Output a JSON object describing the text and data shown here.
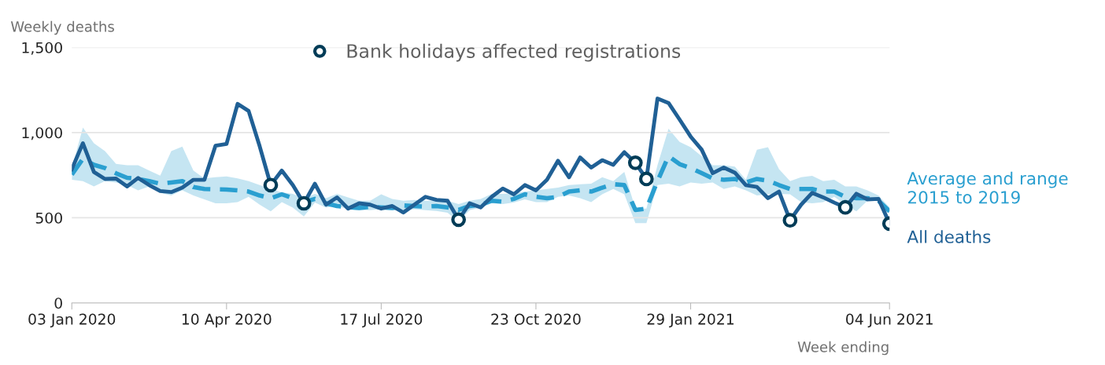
{
  "chart_data": {
    "type": "line",
    "ylabel": "Weekly deaths",
    "xlabel": "Week ending",
    "x": [
      "2020-01-03",
      "2020-01-10",
      "2020-01-17",
      "2020-01-24",
      "2020-01-31",
      "2020-02-07",
      "2020-02-14",
      "2020-02-21",
      "2020-02-28",
      "2020-03-06",
      "2020-03-13",
      "2020-03-20",
      "2020-03-27",
      "2020-04-03",
      "2020-04-10",
      "2020-04-17",
      "2020-04-24",
      "2020-05-01",
      "2020-05-08",
      "2020-05-15",
      "2020-05-22",
      "2020-05-29",
      "2020-06-05",
      "2020-06-12",
      "2020-06-19",
      "2020-06-26",
      "2020-07-03",
      "2020-07-10",
      "2020-07-17",
      "2020-07-24",
      "2020-07-31",
      "2020-08-07",
      "2020-08-14",
      "2020-08-21",
      "2020-08-28",
      "2020-09-04",
      "2020-09-11",
      "2020-09-18",
      "2020-09-25",
      "2020-10-02",
      "2020-10-09",
      "2020-10-16",
      "2020-10-23",
      "2020-10-30",
      "2020-11-06",
      "2020-11-13",
      "2020-11-20",
      "2020-11-27",
      "2020-12-04",
      "2020-12-11",
      "2020-12-18",
      "2020-12-25",
      "2021-01-01",
      "2021-01-08",
      "2021-01-15",
      "2021-01-22",
      "2021-01-29",
      "2021-02-05",
      "2021-02-12",
      "2021-02-19",
      "2021-02-26",
      "2021-03-05",
      "2021-03-12",
      "2021-03-19",
      "2021-03-26",
      "2021-04-02",
      "2021-04-09",
      "2021-04-16",
      "2021-04-23",
      "2021-04-30",
      "2021-05-07",
      "2021-05-14",
      "2021-05-21",
      "2021-05-28",
      "2021-06-04"
    ],
    "series": [
      {
        "name": "Average and range 2015 to 2019",
        "color": "#2a9fd0",
        "line_style": "dashed",
        "values": [
          754,
          846,
          811,
          792,
          761,
          735,
          728,
          715,
          700,
          707,
          715,
          681,
          669,
          667,
          666,
          661,
          654,
          631,
          615,
          638,
          615,
          592,
          611,
          585,
          569,
          562,
          558,
          564,
          561,
          557,
          572,
          569,
          566,
          569,
          561,
          546,
          569,
          577,
          600,
          595,
          611,
          638,
          623,
          615,
          623,
          654,
          661,
          654,
          677,
          697,
          692,
          546,
          554,
          715,
          862,
          815,
          792,
          762,
          731,
          723,
          728,
          707,
          728,
          718,
          692,
          669,
          669,
          669,
          654,
          654,
          623,
          615,
          615,
          600,
          538
        ],
        "lower": [
          723,
          715,
          684,
          715,
          707,
          692,
          661,
          684,
          646,
          631,
          661,
          631,
          608,
          585,
          585,
          592,
          623,
          577,
          538,
          592,
          560,
          508,
          590,
          560,
          570,
          550,
          545,
          545,
          550,
          545,
          540,
          550,
          545,
          540,
          530,
          477,
          545,
          560,
          585,
          580,
          590,
          608,
          592,
          592,
          623,
          631,
          615,
          592,
          638,
          669,
          638,
          469,
          469,
          692,
          700,
          684,
          707,
          700,
          707,
          669,
          684,
          661,
          631,
          638,
          640,
          638,
          592,
          585,
          592,
          623,
          577,
          538,
          600,
          600,
          523
        ],
        "upper": [
          790,
          1030,
          938,
          892,
          817,
          808,
          808,
          777,
          748,
          892,
          918,
          777,
          731,
          738,
          743,
          731,
          715,
          692,
          669,
          650,
          640,
          615,
          640,
          615,
          640,
          620,
          600,
          600,
          638,
          610,
          600,
          605,
          600,
          600,
          600,
          580,
          600,
          610,
          640,
          640,
          645,
          654,
          661,
          669,
          677,
          692,
          697,
          700,
          738,
          715,
          769,
          554,
          554,
          808,
          1023,
          946,
          915,
          862,
          808,
          808,
          800,
          723,
          900,
          915,
          785,
          715,
          738,
          746,
          715,
          723,
          684,
          684,
          661,
          631,
          561
        ]
      },
      {
        "name": "All deaths",
        "color": "#206095",
        "line_style": "solid",
        "values": [
          785,
          938,
          769,
          728,
          730,
          684,
          734,
          692,
          657,
          651,
          677,
          723,
          723,
          923,
          934,
          1169,
          1127,
          920,
          692,
          777,
          692,
          585,
          700,
          577,
          620,
          554,
          585,
          577,
          554,
          569,
          531,
          577,
          623,
          605,
          600,
          489,
          585,
          561,
          623,
          672,
          638,
          692,
          661,
          723,
          835,
          738,
          854,
          795,
          838,
          811,
          885,
          823,
          728,
          1200,
          1174,
          1077,
          977,
          900,
          762,
          795,
          765,
          692,
          681,
          615,
          654,
          485,
          577,
          646,
          620,
          589,
          561,
          641,
          608,
          611,
          466
        ]
      },
      {
        "name": "Bank holidays affected registrations",
        "type": "scatter",
        "marker": "circle",
        "color": "#003c57",
        "x": [
          "2020-05-08",
          "2020-05-29",
          "2020-09-04",
          "2020-12-25",
          "2021-01-01",
          "2021-04-02",
          "2021-05-07",
          "2021-06-04"
        ],
        "values": [
          692,
          585,
          489,
          823,
          728,
          485,
          561,
          466
        ]
      }
    ],
    "xlim": [
      "2020-01-03",
      "2021-06-04"
    ],
    "xticks": [
      {
        "value": "2020-01-03",
        "label": "03 Jan 2020"
      },
      {
        "value": "2020-04-10",
        "label": "10 Apr 2020"
      },
      {
        "value": "2020-07-17",
        "label": "17 Jul 2020"
      },
      {
        "value": "2020-10-23",
        "label": "23 Oct 2020"
      },
      {
        "value": "2021-01-29",
        "label": "29 Jan 2021"
      },
      {
        "value": "2021-06-04",
        "label": "04 Jun 2021"
      }
    ],
    "ylim": [
      0,
      1500
    ],
    "yticks": [
      0,
      500,
      {
        "value": 1000,
        "label": "1,000"
      },
      {
        "value": 1500,
        "label": "1,500"
      }
    ],
    "grid": "y",
    "legend": "top left"
  }
}
